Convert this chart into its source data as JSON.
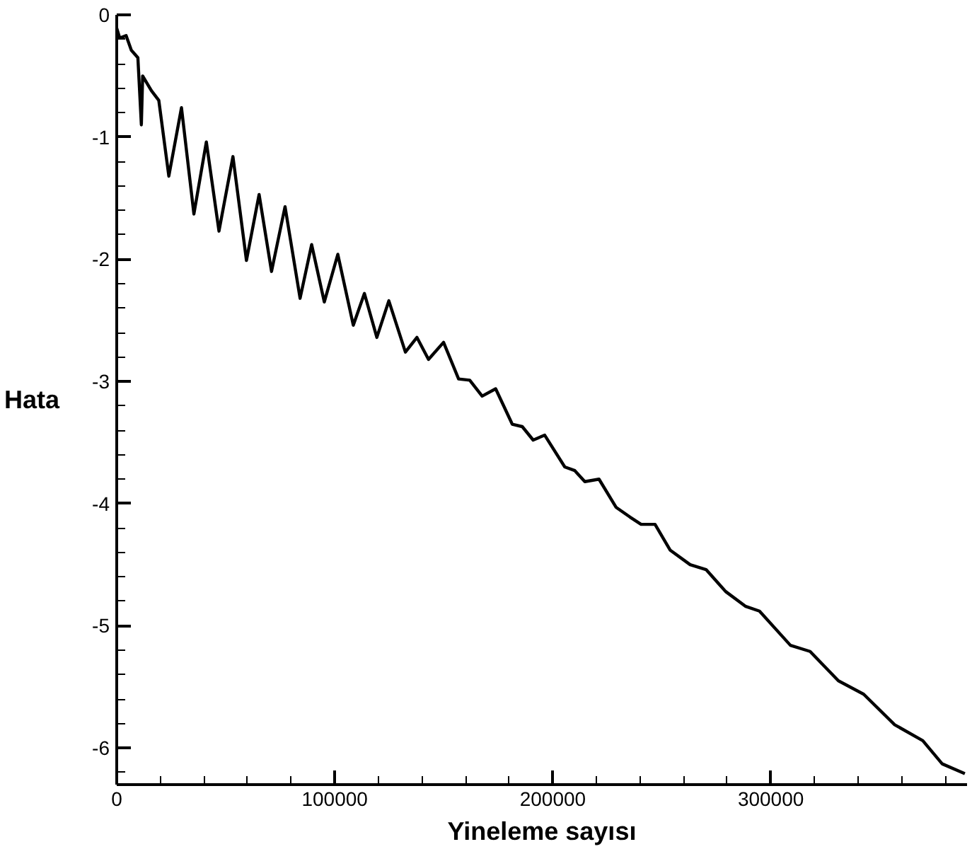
{
  "chart_data": {
    "type": "line",
    "xlabel": "Yineleme sayısı",
    "ylabel": "Hata",
    "x": [
      0,
      1400,
      4300,
      6700,
      9700,
      11300,
      11900,
      15900,
      19300,
      23900,
      29700,
      35400,
      41100,
      46900,
      53300,
      59500,
      65300,
      71000,
      77200,
      84100,
      89400,
      95200,
      101400,
      108500,
      113600,
      119300,
      124800,
      132400,
      137700,
      143000,
      149900,
      156800,
      161900,
      167600,
      173800,
      181400,
      186000,
      191000,
      196300,
      205500,
      210100,
      214700,
      221200,
      229000,
      235400,
      240500,
      246900,
      253800,
      263000,
      270300,
      279300,
      288300,
      294800,
      309000,
      318000,
      331000,
      342600,
      356800,
      369700,
      378600,
      389000
    ],
    "series": [
      {
        "color": "#000000",
        "values": [
          -0.11,
          -0.19,
          -0.17,
          -0.29,
          -0.35,
          -0.9,
          -0.5,
          -0.62,
          -0.7,
          -1.32,
          -0.76,
          -1.63,
          -1.04,
          -1.77,
          -1.16,
          -2.01,
          -1.47,
          -2.1,
          -1.57,
          -2.32,
          -1.88,
          -2.35,
          -1.96,
          -2.54,
          -2.28,
          -2.64,
          -2.34,
          -2.76,
          -2.64,
          -2.82,
          -2.68,
          -2.98,
          -2.99,
          -3.12,
          -3.06,
          -3.35,
          -3.37,
          -3.48,
          -3.44,
          -3.7,
          -3.73,
          -3.82,
          -3.8,
          -4.03,
          -4.11,
          -4.17,
          -4.17,
          -4.38,
          -4.5,
          -4.54,
          -4.72,
          -4.84,
          -4.88,
          -5.16,
          -5.21,
          -5.45,
          -5.56,
          -5.81,
          -5.94,
          -6.13,
          -6.21
        ]
      }
    ],
    "xlim": [
      0,
      390000
    ],
    "ylim": [
      -6.3,
      0
    ],
    "xticks": [
      0,
      {
        "value": 20000,
        "label": null
      },
      {
        "value": 40000,
        "label": null
      },
      {
        "value": 60000,
        "label": null
      },
      {
        "value": 80000,
        "label": null
      },
      100000,
      {
        "value": 120000,
        "label": null
      },
      {
        "value": 140000,
        "label": null
      },
      {
        "value": 160000,
        "label": null
      },
      {
        "value": 180000,
        "label": null
      },
      200000,
      {
        "value": 220000,
        "label": null
      },
      {
        "value": 240000,
        "label": null
      },
      {
        "value": 260000,
        "label": null
      },
      {
        "value": 280000,
        "label": null
      },
      300000,
      {
        "value": 320000,
        "label": null
      },
      {
        "value": 340000,
        "label": null
      },
      {
        "value": 360000,
        "label": null
      },
      {
        "value": 380000,
        "label": null
      }
    ],
    "yticks": [
      0,
      {
        "value": -0.2,
        "label": null
      },
      {
        "value": -0.4,
        "label": null
      },
      {
        "value": -0.6,
        "label": null
      },
      {
        "value": -0.8,
        "label": null
      },
      -1,
      {
        "value": -1.2,
        "label": null
      },
      {
        "value": -1.4,
        "label": null
      },
      {
        "value": -1.6,
        "label": null
      },
      {
        "value": -1.8,
        "label": null
      },
      -2,
      {
        "value": -2.2,
        "label": null
      },
      {
        "value": -2.4,
        "label": null
      },
      {
        "value": -2.6,
        "label": null
      },
      {
        "value": -2.8,
        "label": null
      },
      -3,
      {
        "value": -3.2,
        "label": null
      },
      {
        "value": -3.4,
        "label": null
      },
      {
        "value": -3.6,
        "label": null
      },
      {
        "value": -3.8,
        "label": null
      },
      -4,
      {
        "value": -4.2,
        "label": null
      },
      {
        "value": -4.4,
        "label": null
      },
      {
        "value": -4.6,
        "label": null
      },
      {
        "value": -4.8,
        "label": null
      },
      -5,
      {
        "value": -5.2,
        "label": null
      },
      {
        "value": -5.4,
        "label": null
      },
      {
        "value": -5.6,
        "label": null
      },
      {
        "value": -5.8,
        "label": null
      },
      -6,
      {
        "value": -6.2,
        "label": null
      }
    ],
    "grid": false,
    "marker": "none",
    "line_style": "solid"
  }
}
